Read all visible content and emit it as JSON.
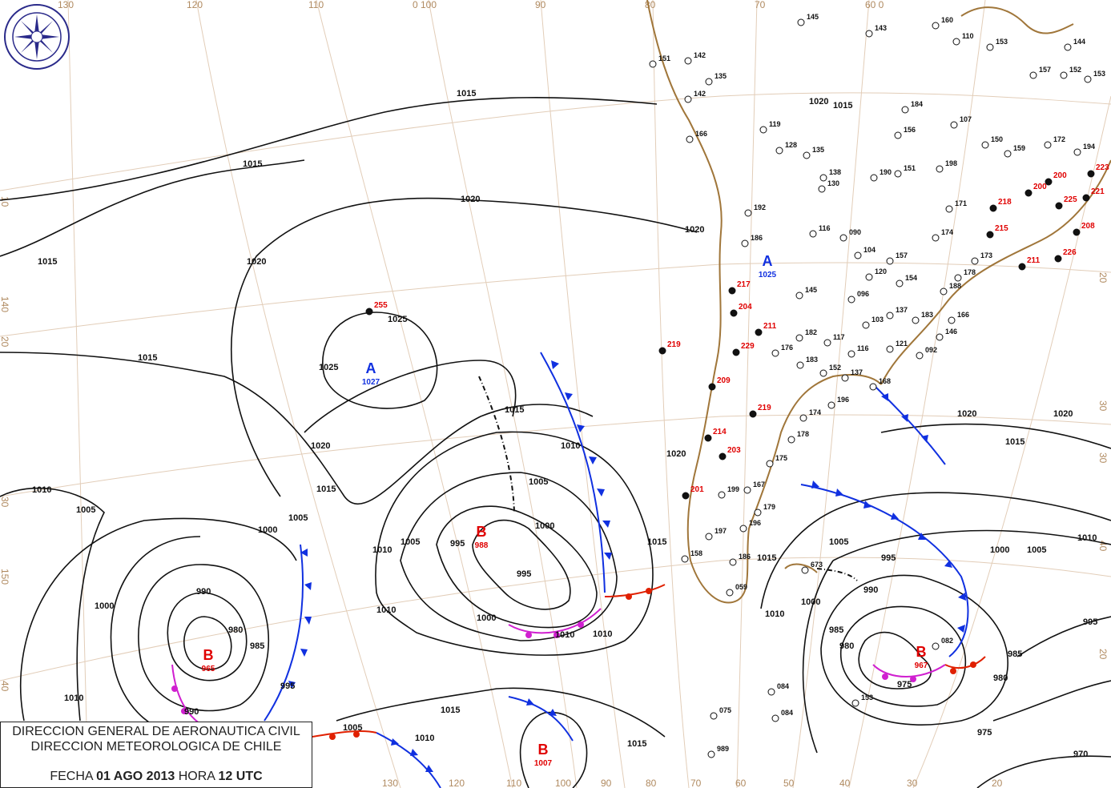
{
  "logo": {
    "text_top": "DIRECCION METEOROLOGICA",
    "text_bottom": "CHILE",
    "color": "#2a2a8a"
  },
  "legend": {
    "line1": "DIRECCION GENERAL DE AERONAUTICA CIVIL",
    "line2": "DIRECCION METEOROLOGICA DE CHILE",
    "date_label": "FECHA",
    "date_value": "01 AGO 2013",
    "time_label": "HORA",
    "time_value": "12 UTC"
  },
  "colors": {
    "high": "#1030e0",
    "low": "#e00000",
    "cold_front": "#1030e0",
    "warm_front": "#e02000",
    "occluded_front": "#d020d0",
    "coast": "#a0763a",
    "grid": "#e2cdb8"
  },
  "grid_labels": {
    "top": [
      "130",
      "120",
      "110",
      "0 100",
      "90",
      "80",
      "70",
      "60 0"
    ],
    "bottom": [
      "130",
      "120",
      "110",
      "100",
      "90",
      "80",
      "70",
      "60",
      "50",
      "40",
      "30",
      "20"
    ],
    "left": [
      "10",
      "140",
      "20",
      "30",
      "150",
      "40"
    ],
    "right": [
      "20",
      "30",
      "30",
      "40",
      "20"
    ]
  },
  "pressure_centers": [
    {
      "letter": "A",
      "value": "1027",
      "kind": "high"
    },
    {
      "letter": "A",
      "value": "1025",
      "kind": "high"
    },
    {
      "letter": "B",
      "value": "988",
      "kind": "low"
    },
    {
      "letter": "B",
      "value": "965",
      "kind": "low"
    },
    {
      "letter": "B",
      "value": "967",
      "kind": "low"
    },
    {
      "letter": "B",
      "value": "1007",
      "kind": "low"
    }
  ],
  "isobar_labels": [
    "1015",
    "1015",
    "1015",
    "1015",
    "1020",
    "1020",
    "1020",
    "1025",
    "1025",
    "1020",
    "1015",
    "1010",
    "1005",
    "1000",
    "995",
    "1010",
    "1005",
    "1000",
    "995",
    "990",
    "980",
    "985",
    "995",
    "1000",
    "1010",
    "1010",
    "1005",
    "1010",
    "1000",
    "1005",
    "1010",
    "1015",
    "1015",
    "1010",
    "1015",
    "1020",
    "1015",
    "1010",
    "1005",
    "995",
    "990",
    "985",
    "980",
    "975",
    "980",
    "985",
    "990",
    "995",
    "1000",
    "1005",
    "1010",
    "1015",
    "1020",
    "970",
    "975",
    "1000",
    "1005",
    "1010",
    "1015",
    "1020",
    "1015",
    "1020"
  ],
  "stations_red": [
    "255",
    "217",
    "204",
    "211",
    "229",
    "219",
    "209",
    "219",
    "214",
    "203",
    "201",
    "223",
    "200",
    "221",
    "225",
    "208",
    "226",
    "211",
    "215",
    "218",
    "200"
  ],
  "stations_black": [
    "145",
    "143",
    "160",
    "142",
    "144",
    "151",
    "142",
    "135",
    "166",
    "128",
    "135",
    "119",
    "138",
    "190",
    "151",
    "198",
    "171",
    "150",
    "159",
    "172",
    "194",
    "152",
    "153",
    "157",
    "174",
    "186",
    "116",
    "090",
    "104",
    "120",
    "157",
    "154",
    "178",
    "145",
    "096",
    "103",
    "137",
    "182",
    "176",
    "183",
    "117",
    "116",
    "121",
    "092",
    "152",
    "137",
    "168",
    "196",
    "174",
    "178",
    "175",
    "167",
    "199",
    "196",
    "179",
    "197",
    "158",
    "186",
    "059",
    "673",
    "082",
    "084",
    "075",
    "084",
    "989",
    "153",
    "184",
    "156",
    "107",
    "130",
    "192",
    "188",
    "173",
    "110",
    "153",
    "146",
    "166",
    "183"
  ]
}
